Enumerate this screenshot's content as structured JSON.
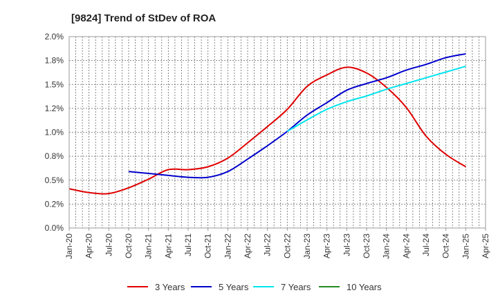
{
  "chart_data": {
    "type": "line",
    "title": "[9824]  Trend of StDev of ROA",
    "xlabel": "",
    "ylabel": "",
    "ylim": [
      0,
      2.0
    ],
    "y_ticks": [
      0,
      0.25,
      0.5,
      0.75,
      1.0,
      1.25,
      1.5,
      1.75,
      2.0
    ],
    "y_tick_labels": [
      "0.0%",
      "0.2%",
      "0.5%",
      "0.8%",
      "1.0%",
      "1.2%",
      "1.5%",
      "1.8%",
      "2.0%"
    ],
    "x_tick_labels": [
      "Jan-20",
      "Apr-20",
      "Jul-20",
      "Oct-20",
      "Jan-21",
      "Apr-21",
      "Jul-21",
      "Oct-21",
      "Jan-22",
      "Apr-22",
      "Jul-22",
      "Oct-22",
      "Jan-23",
      "Apr-23",
      "Jul-23",
      "Oct-23",
      "Jan-24",
      "Apr-24",
      "Jul-24",
      "Oct-24",
      "Jan-25",
      "Apr-25"
    ],
    "grid": true,
    "legend_position": "bottom",
    "series": [
      {
        "name": "3 Years",
        "color": "#e00000",
        "x": [
          "Jan-20",
          "Apr-20",
          "Jul-20",
          "Oct-20",
          "Jan-21",
          "Apr-21",
          "Jul-21",
          "Oct-21",
          "Jan-22",
          "Apr-22",
          "Jul-22",
          "Oct-22",
          "Jan-23",
          "Apr-23",
          "Jul-23",
          "Oct-23",
          "Jan-24",
          "Apr-24",
          "Jul-24",
          "Oct-24",
          "Jan-25"
        ],
        "values": [
          0.41,
          0.37,
          0.36,
          0.42,
          0.51,
          0.61,
          0.61,
          0.64,
          0.73,
          0.89,
          1.06,
          1.24,
          1.48,
          1.6,
          1.68,
          1.62,
          1.47,
          1.26,
          0.96,
          0.77,
          0.64
        ]
      },
      {
        "name": "5 Years",
        "color": "#0000cc",
        "x": [
          "Oct-20",
          "Jan-21",
          "Apr-21",
          "Jul-21",
          "Oct-21",
          "Jan-22",
          "Apr-22",
          "Jul-22",
          "Oct-22",
          "Jan-23",
          "Apr-23",
          "Jul-23",
          "Oct-23",
          "Jan-24",
          "Apr-24",
          "Jul-24",
          "Oct-24",
          "Jan-25"
        ],
        "values": [
          0.59,
          0.57,
          0.55,
          0.53,
          0.53,
          0.59,
          0.72,
          0.86,
          1.01,
          1.18,
          1.31,
          1.44,
          1.51,
          1.57,
          1.65,
          1.71,
          1.78,
          1.82
        ]
      },
      {
        "name": "7 Years",
        "color": "#00e5ee",
        "x": [
          "Oct-22",
          "Jan-23",
          "Apr-23",
          "Jul-23",
          "Oct-23",
          "Jan-24",
          "Apr-24",
          "Jul-24",
          "Oct-24",
          "Jan-25"
        ],
        "values": [
          1.01,
          1.13,
          1.24,
          1.32,
          1.38,
          1.45,
          1.51,
          1.57,
          1.63,
          1.69
        ]
      },
      {
        "name": "10 Years",
        "color": "#228b22",
        "x": [],
        "values": []
      }
    ]
  }
}
